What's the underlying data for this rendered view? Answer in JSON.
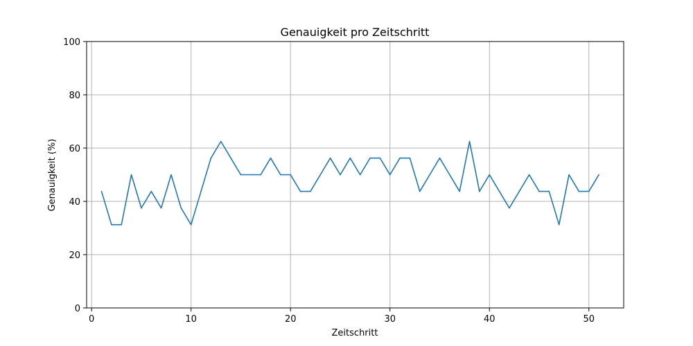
{
  "chart_data": {
    "type": "line",
    "title": "Genauigkeit pro Zeitschritt",
    "xlabel": "Zeitschritt",
    "ylabel": "Genauigkeit (%)",
    "xlim": [
      -0.5,
      53.5
    ],
    "ylim": [
      0,
      100
    ],
    "xticks": [
      0,
      10,
      20,
      30,
      40,
      50
    ],
    "yticks": [
      0,
      20,
      40,
      60,
      80,
      100
    ],
    "grid": true,
    "colors": {
      "line": "#1f77b4",
      "grid": "#b0b0b0",
      "axis": "#000000"
    },
    "series": [
      {
        "x": [
          1,
          2,
          3,
          4,
          5,
          6,
          7,
          8,
          9,
          10,
          11,
          12,
          13,
          14,
          15,
          16,
          17,
          18,
          19,
          20,
          21,
          22,
          23,
          24,
          25,
          26,
          27,
          28,
          29,
          30,
          31,
          32,
          33,
          34,
          35,
          36,
          37,
          38,
          39,
          40,
          41,
          42,
          43,
          44,
          45,
          46,
          47,
          48,
          49,
          50,
          51
        ],
        "values": [
          43.75,
          31.25,
          31.25,
          50,
          37.5,
          43.75,
          37.5,
          50,
          37.5,
          31.25,
          43.75,
          56.25,
          62.5,
          56.25,
          50,
          50,
          50,
          56.25,
          50,
          50,
          43.75,
          43.75,
          50,
          56.25,
          50,
          56.25,
          50,
          56.25,
          56.25,
          50,
          56.25,
          56.25,
          43.75,
          50,
          56.25,
          50,
          43.75,
          62.5,
          43.75,
          50,
          43.75,
          37.5,
          43.75,
          50,
          43.75,
          43.75,
          31.25,
          50,
          43.75,
          43.75,
          50
        ]
      }
    ]
  }
}
